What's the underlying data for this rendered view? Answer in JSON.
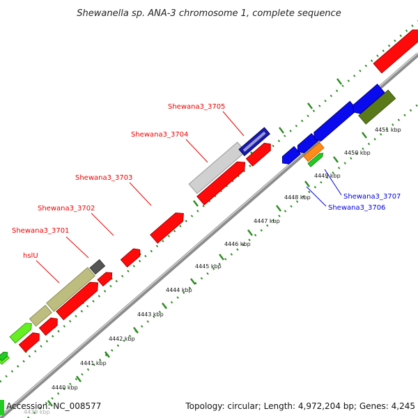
{
  "title": "Shewanella sp. ANA-3 chromosome 1, complete sequence",
  "accession": "Accession: NC_008577",
  "topology": "Topology: circular; Length: 4,972,204 bp; Genes: 4,245",
  "colors": {
    "backbone": "#8c8c8c",
    "tick": "#2e8b22",
    "red_gene": "#ff0a0a",
    "blue_gene": "#0a0aee",
    "gray_gene": "#c8c8c8",
    "olive_gene": "#bdbd80",
    "dark_olive_gene": "#5a7a1a",
    "light_green_gene": "#66ee22",
    "orange_gene": "#ff8c1a",
    "green_gene": "#22cc22",
    "dark_gray_gene": "#555555",
    "label_red": "#ee0000",
    "label_blue": "#0000dd"
  },
  "ticks": [
    {
      "label": "4439 kbp",
      "faded": true
    },
    {
      "label": "4440 kbp"
    },
    {
      "label": "4441 kbp"
    },
    {
      "label": "4442 kbp"
    },
    {
      "label": "4443 kbp"
    },
    {
      "label": "4444 kbp"
    },
    {
      "label": "4445 kbp"
    },
    {
      "label": "4446 kbp"
    },
    {
      "label": "4447 kbp"
    },
    {
      "label": "4448 kbp"
    },
    {
      "label": "4449 kbp"
    },
    {
      "label": "4450 kbp"
    },
    {
      "label": "4451 kbp"
    }
  ],
  "gene_labels": [
    {
      "name": "hslU",
      "color": "label_red"
    },
    {
      "name": "Shewana3_3701",
      "color": "label_red"
    },
    {
      "name": "Shewana3_3702",
      "color": "label_red"
    },
    {
      "name": "Shewana3_3703",
      "color": "label_red"
    },
    {
      "name": "Shewana3_3704",
      "color": "label_red"
    },
    {
      "name": "Shewana3_3705",
      "color": "label_red"
    },
    {
      "name": "Shewana3_3706",
      "color": "label_blue"
    },
    {
      "name": "Shewana3_3707",
      "color": "label_blue"
    }
  ]
}
